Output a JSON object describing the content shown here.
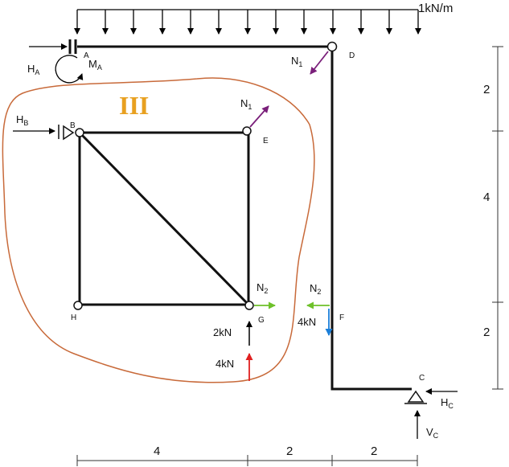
{
  "load": {
    "value": "1kN/m"
  },
  "zone": {
    "label": "III",
    "color": "#e8a020",
    "outline_color": "#c86a3a"
  },
  "nodes": {
    "A": "A",
    "B": "B",
    "C": "C",
    "D": "D",
    "E": "E",
    "F": "F",
    "G": "G",
    "H": "H"
  },
  "reactions": {
    "HA": {
      "main": "H",
      "sub": "A"
    },
    "MA": {
      "main": "M",
      "sub": "A"
    },
    "HB": {
      "main": "H",
      "sub": "B"
    },
    "HC": {
      "main": "H",
      "sub": "C"
    },
    "VC": {
      "main": "V",
      "sub": "C"
    }
  },
  "forces": {
    "N1_D": {
      "main": "N",
      "sub": "1",
      "color": "#7a1f7a"
    },
    "N1_E": {
      "main": "N",
      "sub": "1",
      "color": "#7a1f7a"
    },
    "N2_G": {
      "main": "N",
      "sub": "2",
      "color": "#6ec12a"
    },
    "N2_F": {
      "main": "N",
      "sub": "2",
      "color": "#6ec12a"
    },
    "G_2kN": {
      "text": "2kN",
      "color": "#000000"
    },
    "G_4kN": {
      "text": "4kN",
      "color": "#e02020"
    },
    "F_4kN": {
      "text": "4kN",
      "color": "#1a7ed8"
    }
  },
  "dims": {
    "horizontal": [
      "4",
      "2",
      "2"
    ],
    "vertical": [
      "2",
      "4",
      "2"
    ]
  }
}
